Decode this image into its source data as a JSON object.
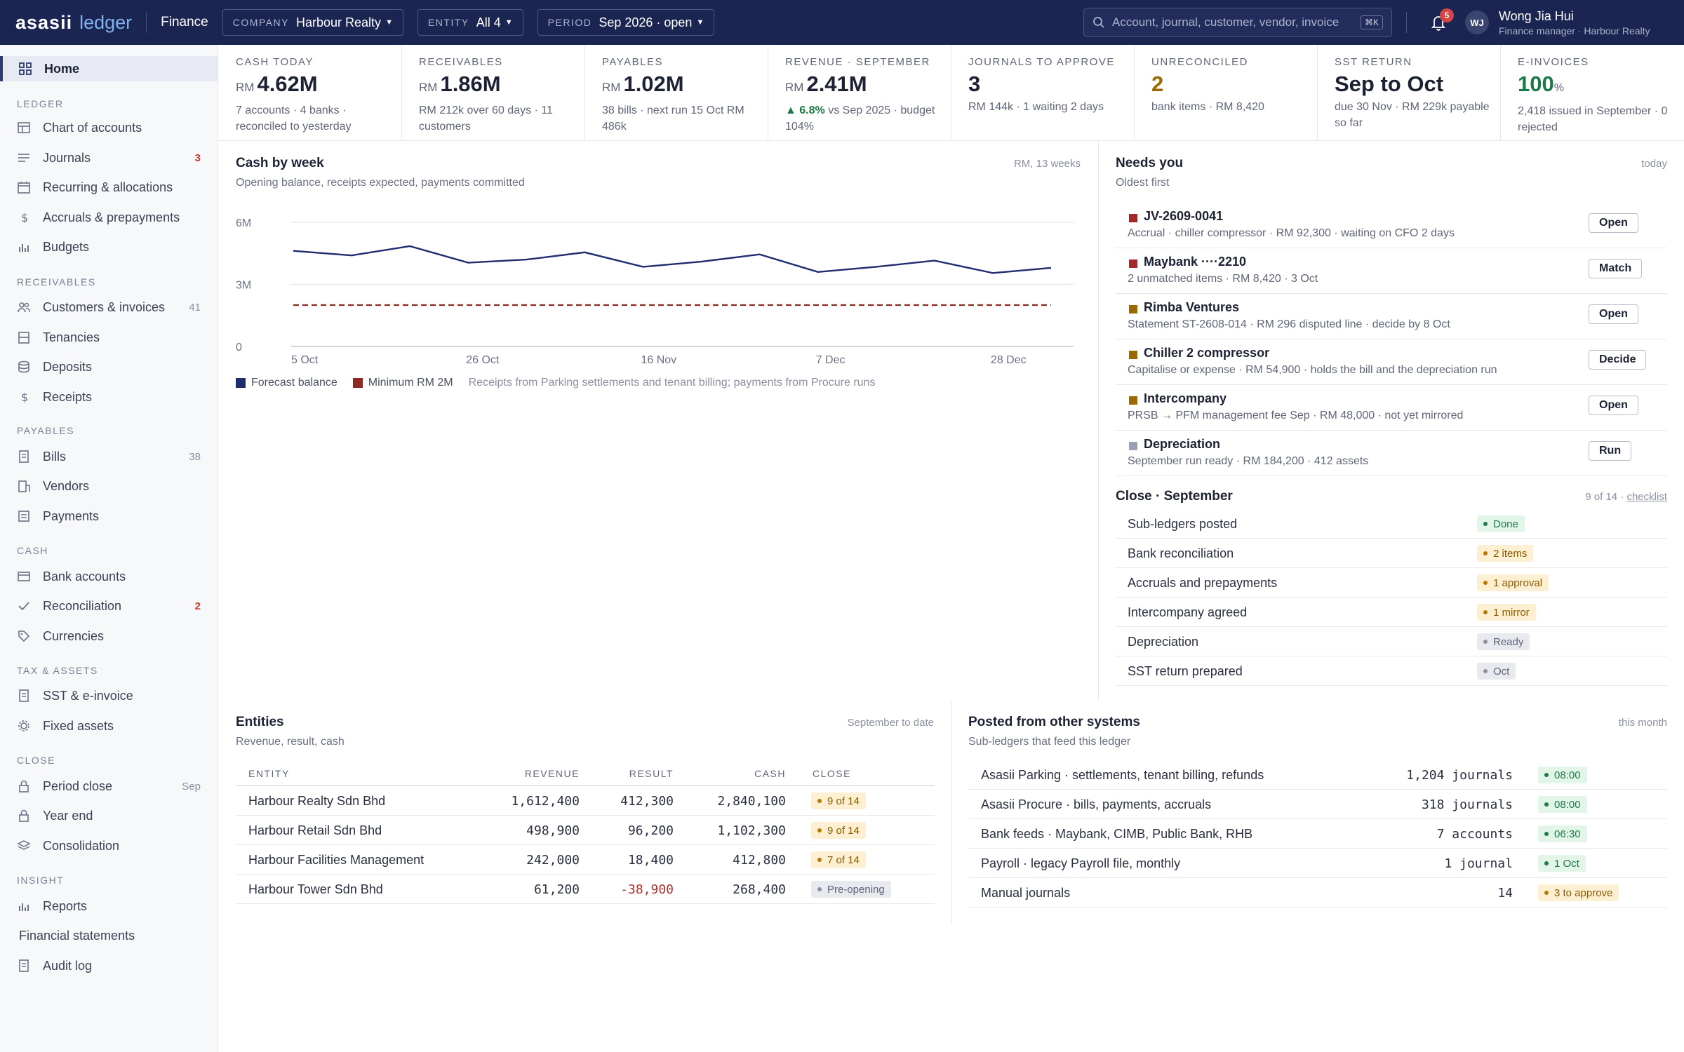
{
  "topbar": {
    "brand1": "asasii",
    "brand2": "ledger",
    "area": "Finance",
    "company": {
      "key": "COMPANY",
      "value": "Harbour Realty"
    },
    "entity": {
      "key": "ENTITY",
      "value": "All 4"
    },
    "period": {
      "key": "PERIOD",
      "value": "Sep 2026 · open"
    },
    "search_placeholder": "Account, journal, customer, vendor, invoice",
    "search_kbd": "⌘K",
    "notifications": "5",
    "avatar": "WJ",
    "user_name": "Wong Jia Hui",
    "user_role": "Finance manager · Harbour Realty"
  },
  "sidebar": {
    "home": "Home",
    "sections": {
      "ledger": "LEDGER",
      "receivables": "RECEIVABLES",
      "payables": "PAYABLES",
      "cash": "CASH",
      "tax": "TAX & ASSETS",
      "close": "CLOSE",
      "insight": "INSIGHT"
    },
    "items": {
      "chart": "Chart of accounts",
      "journals": "Journals",
      "journals_count": "3",
      "recurring": "Recurring & allocations",
      "accruals": "Accruals & prepayments",
      "budgets": "Budgets",
      "customers": "Customers & invoices",
      "customers_count": "41",
      "tenancies": "Tenancies",
      "deposits": "Deposits",
      "receipts": "Receipts",
      "bills": "Bills",
      "bills_count": "38",
      "vendors": "Vendors",
      "payments": "Payments",
      "bank": "Bank accounts",
      "recon": "Reconciliation",
      "recon_count": "2",
      "currencies": "Currencies",
      "sst": "SST & e-invoice",
      "fixed": "Fixed assets",
      "period_close": "Period close",
      "period_close_count": "Sep",
      "year_end": "Year end",
      "consolidation": "Consolidation",
      "reports": "Reports",
      "fin_statements": "Financial statements",
      "audit": "Audit log"
    }
  },
  "kpis": [
    {
      "label": "CASH TODAY",
      "cur": "RM",
      "value": "4.62M",
      "sub": "7 accounts · 4 banks · reconciled to yesterday"
    },
    {
      "label": "RECEIVABLES",
      "cur": "RM",
      "value": "1.86M",
      "sub": "RM 212k over 60 days · 11 customers"
    },
    {
      "label": "PAYABLES",
      "cur": "RM",
      "value": "1.02M",
      "sub": "38 bills · next run 15 Oct RM 486k"
    },
    {
      "label": "REVENUE · SEPTEMBER",
      "cur": "RM",
      "value": "2.41M",
      "delta": "▲ 6.8%",
      "sub": " vs Sep 2025 · budget 104%"
    },
    {
      "label": "JOURNALS TO APPROVE",
      "value": "3",
      "sub": "RM 144k · 1 waiting 2 days"
    },
    {
      "label": "UNRECONCILED",
      "value": "2",
      "sub": "bank items · RM 8,420"
    },
    {
      "label": "SST RETURN",
      "value": "Sep to Oct",
      "sub": "due 30 Nov · RM 229k payable so far"
    },
    {
      "label": "E-INVOICES",
      "value": "100",
      "pct": "%",
      "sub": "2,418 issued in September · 0 rejected"
    }
  ],
  "cash": {
    "title": "Cash by week",
    "subtitle": "Opening balance, receipts expected, payments committed",
    "meta": "RM, 13 weeks",
    "legend_forecast": "Forecast balance",
    "legend_min": "Minimum RM 2M",
    "note": "Receipts from Parking settlements and tenant billing; payments from Procure runs",
    "colors": {
      "forecast": "#1f2c6e",
      "minimum": "#8a2a22"
    }
  },
  "chart_data": {
    "type": "line",
    "x": [
      "5 Oct",
      "12 Oct",
      "19 Oct",
      "26 Oct",
      "2 Nov",
      "9 Nov",
      "16 Nov",
      "23 Nov",
      "30 Nov",
      "7 Dec",
      "14 Dec",
      "21 Dec",
      "28 Dec",
      "4 Jan"
    ],
    "xticks": [
      "5 Oct",
      "26 Oct",
      "16 Nov",
      "7 Dec",
      "28 Dec"
    ],
    "yticks": [
      "0",
      "3M",
      "6M"
    ],
    "ylim": [
      0,
      6
    ],
    "series": [
      {
        "name": "Forecast balance",
        "values": [
          4.62,
          4.4,
          4.85,
          4.05,
          4.2,
          4.55,
          3.85,
          4.1,
          4.45,
          3.6,
          3.85,
          4.15,
          3.55,
          3.8
        ]
      },
      {
        "name": "Minimum RM 2M",
        "values": [
          2,
          2,
          2,
          2,
          2,
          2,
          2,
          2,
          2,
          2,
          2,
          2,
          2,
          2
        ]
      }
    ]
  },
  "needs": {
    "title": "Needs you",
    "subtitle": "Oldest first",
    "meta": "today",
    "items": [
      {
        "title": "JV-2609-0041",
        "desc": "Accrual · chiller compressor · RM 92,300 · waiting on CFO 2 days",
        "action": "Open",
        "color": "#a3282a"
      },
      {
        "title": "Maybank ····2210",
        "desc": "2 unmatched items · RM 8,420 · 3 Oct",
        "action": "Match",
        "color": "#a3282a"
      },
      {
        "title": "Rimba Ventures",
        "desc": "Statement ST-2608-014 · RM 296 disputed line · decide by 8 Oct",
        "action": "Open",
        "color": "#9a6a00"
      },
      {
        "title": "Chiller 2 compressor",
        "desc": "Capitalise or expense · RM 54,900 · holds the bill and the depreciation run",
        "action": "Decide",
        "color": "#9a6a00"
      },
      {
        "title": "Intercompany",
        "desc": "PRSB → PFM management fee Sep · RM 48,000 · not yet mirrored",
        "action": "Open",
        "color": "#9a6a00"
      },
      {
        "title": "Depreciation",
        "desc": "September run ready · RM 184,200 · 412 assets",
        "action": "Run",
        "color": "#9aa0b0"
      }
    ]
  },
  "close": {
    "title": "Close · September",
    "meta": "9 of 14 · ",
    "link": "checklist",
    "items": [
      {
        "name": "Sub-ledgers posted",
        "status": "Done",
        "kind": "green"
      },
      {
        "name": "Bank reconciliation",
        "status": "2 items",
        "kind": "amber"
      },
      {
        "name": "Accruals and prepayments",
        "status": "1 approval",
        "kind": "amber"
      },
      {
        "name": "Intercompany agreed",
        "status": "1 mirror",
        "kind": "amber"
      },
      {
        "name": "Depreciation",
        "status": "Ready",
        "kind": "grey"
      },
      {
        "name": "SST return prepared",
        "status": "Oct",
        "kind": "grey"
      }
    ]
  },
  "entities": {
    "title": "Entities",
    "subtitle": "Revenue, result, cash",
    "meta": "September to date",
    "headers": {
      "entity": "ENTITY",
      "revenue": "REVENUE",
      "result": "RESULT",
      "cash": "CASH",
      "close": "CLOSE"
    },
    "rows": [
      {
        "name": "Harbour Realty Sdn Bhd",
        "revenue": "1,612,400",
        "result": "412,300",
        "cash": "2,840,100",
        "close": "9 of 14",
        "kind": "amber"
      },
      {
        "name": "Harbour Retail Sdn Bhd",
        "revenue": "498,900",
        "result": "96,200",
        "cash": "1,102,300",
        "close": "9 of 14",
        "kind": "amber"
      },
      {
        "name": "Harbour Facilities Management",
        "revenue": "242,000",
        "result": "18,400",
        "cash": "412,800",
        "close": "7 of 14",
        "kind": "amber"
      },
      {
        "name": "Harbour Tower Sdn Bhd",
        "revenue": "61,200",
        "result": "-38,900",
        "cash": "268,400",
        "close": "Pre-opening",
        "kind": "grey"
      }
    ]
  },
  "posted": {
    "title": "Posted from other systems",
    "subtitle": "Sub-ledgers that feed this ledger",
    "meta": "this month",
    "rows": [
      {
        "name": "Asasii Parking · settlements, tenant billing, refunds",
        "count": "1,204 journals",
        "status": "08:00",
        "kind": "green"
      },
      {
        "name": "Asasii Procure · bills, payments, accruals",
        "count": "318 journals",
        "status": "08:00",
        "kind": "green"
      },
      {
        "name": "Bank feeds · Maybank, CIMB, Public Bank, RHB",
        "count": "7 accounts",
        "status": "06:30",
        "kind": "green"
      },
      {
        "name": "Payroll · legacy Payroll file, monthly",
        "count": "1 journal",
        "status": "1 Oct",
        "kind": "green"
      },
      {
        "name": "Manual journals",
        "count": "14",
        "status": "3 to approve",
        "kind": "amber"
      }
    ]
  }
}
